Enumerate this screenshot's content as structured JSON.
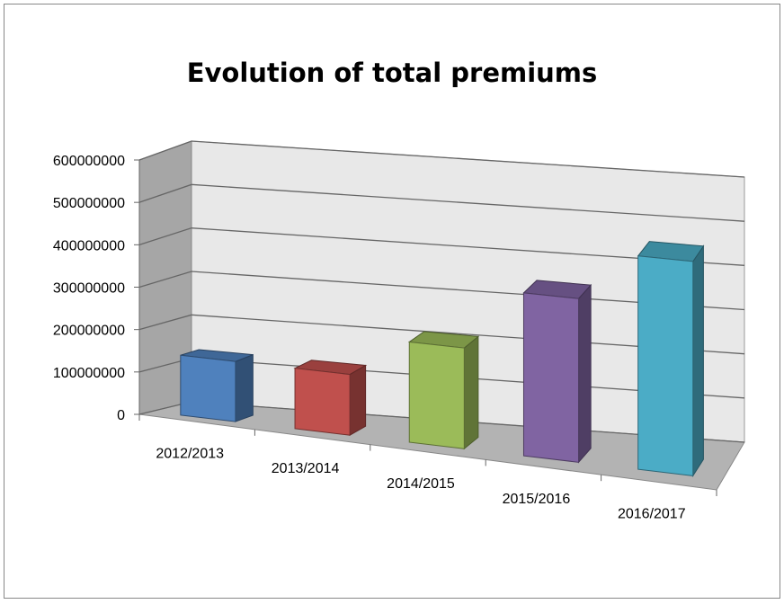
{
  "chart_data": {
    "type": "bar",
    "title": "Evolution of total premiums",
    "categories": [
      "2012/2013",
      "2013/2014",
      "2014/2015",
      "2015/2016",
      "2016/2017"
    ],
    "values": [
      140000000,
      140000000,
      230000000,
      370000000,
      480000000
    ],
    "colors": [
      "#4f81bd",
      "#c0504d",
      "#9bbb59",
      "#8064a2",
      "#4bacc6"
    ],
    "yticks": [
      "0",
      "100000000",
      "200000000",
      "300000000",
      "400000000",
      "500000000",
      "600000000"
    ],
    "ylim": [
      0,
      600000000
    ],
    "xlabel": "",
    "ylabel": "",
    "grid": true,
    "legend": "none",
    "style": "3d-column"
  }
}
